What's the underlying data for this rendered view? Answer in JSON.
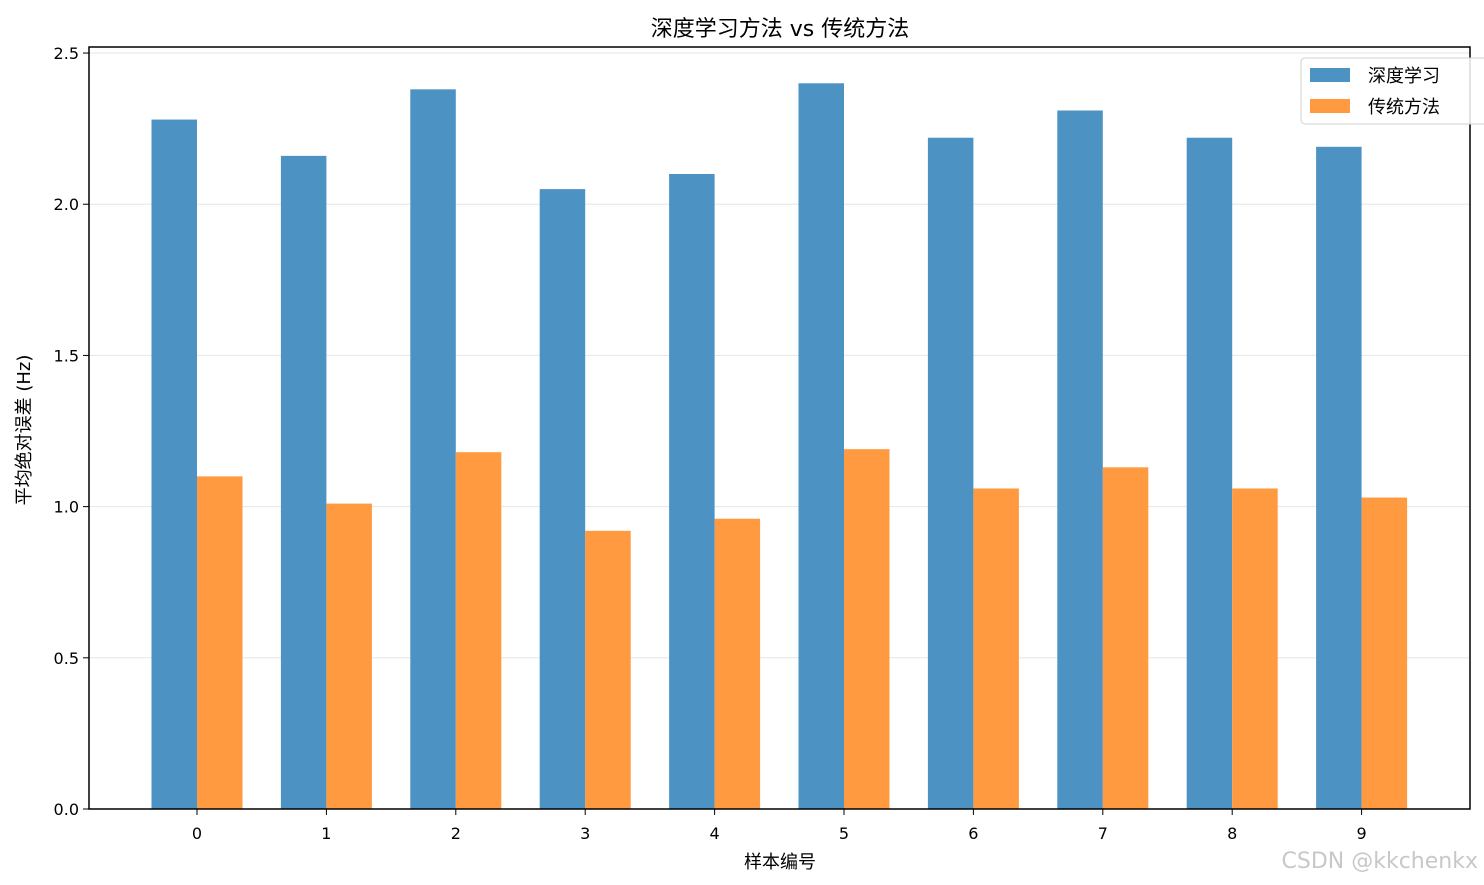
{
  "chart_data": {
    "type": "bar",
    "title": "深度学习方法 vs 传统方法",
    "xlabel": "样本编号",
    "ylabel": "平均绝对误差 (Hz)",
    "categories": [
      "0",
      "1",
      "2",
      "3",
      "4",
      "5",
      "6",
      "7",
      "8",
      "9"
    ],
    "series": [
      {
        "name": "深度学习",
        "color": "#4c92c3",
        "values": [
          2.28,
          2.16,
          2.38,
          2.05,
          2.1,
          2.4,
          2.22,
          2.31,
          2.22,
          2.19
        ]
      },
      {
        "name": "传统方法",
        "color": "#ff9a40",
        "values": [
          1.1,
          1.01,
          1.18,
          0.92,
          0.96,
          1.19,
          1.06,
          1.13,
          1.06,
          1.03
        ]
      }
    ],
    "ylim": [
      0,
      2.52
    ],
    "yticks": [
      "0.0",
      "0.5",
      "1.0",
      "1.5",
      "2.0",
      "2.5"
    ],
    "grid": "horizontal",
    "legend_position": "top-right"
  },
  "watermark": "CSDN @kkchenkx"
}
